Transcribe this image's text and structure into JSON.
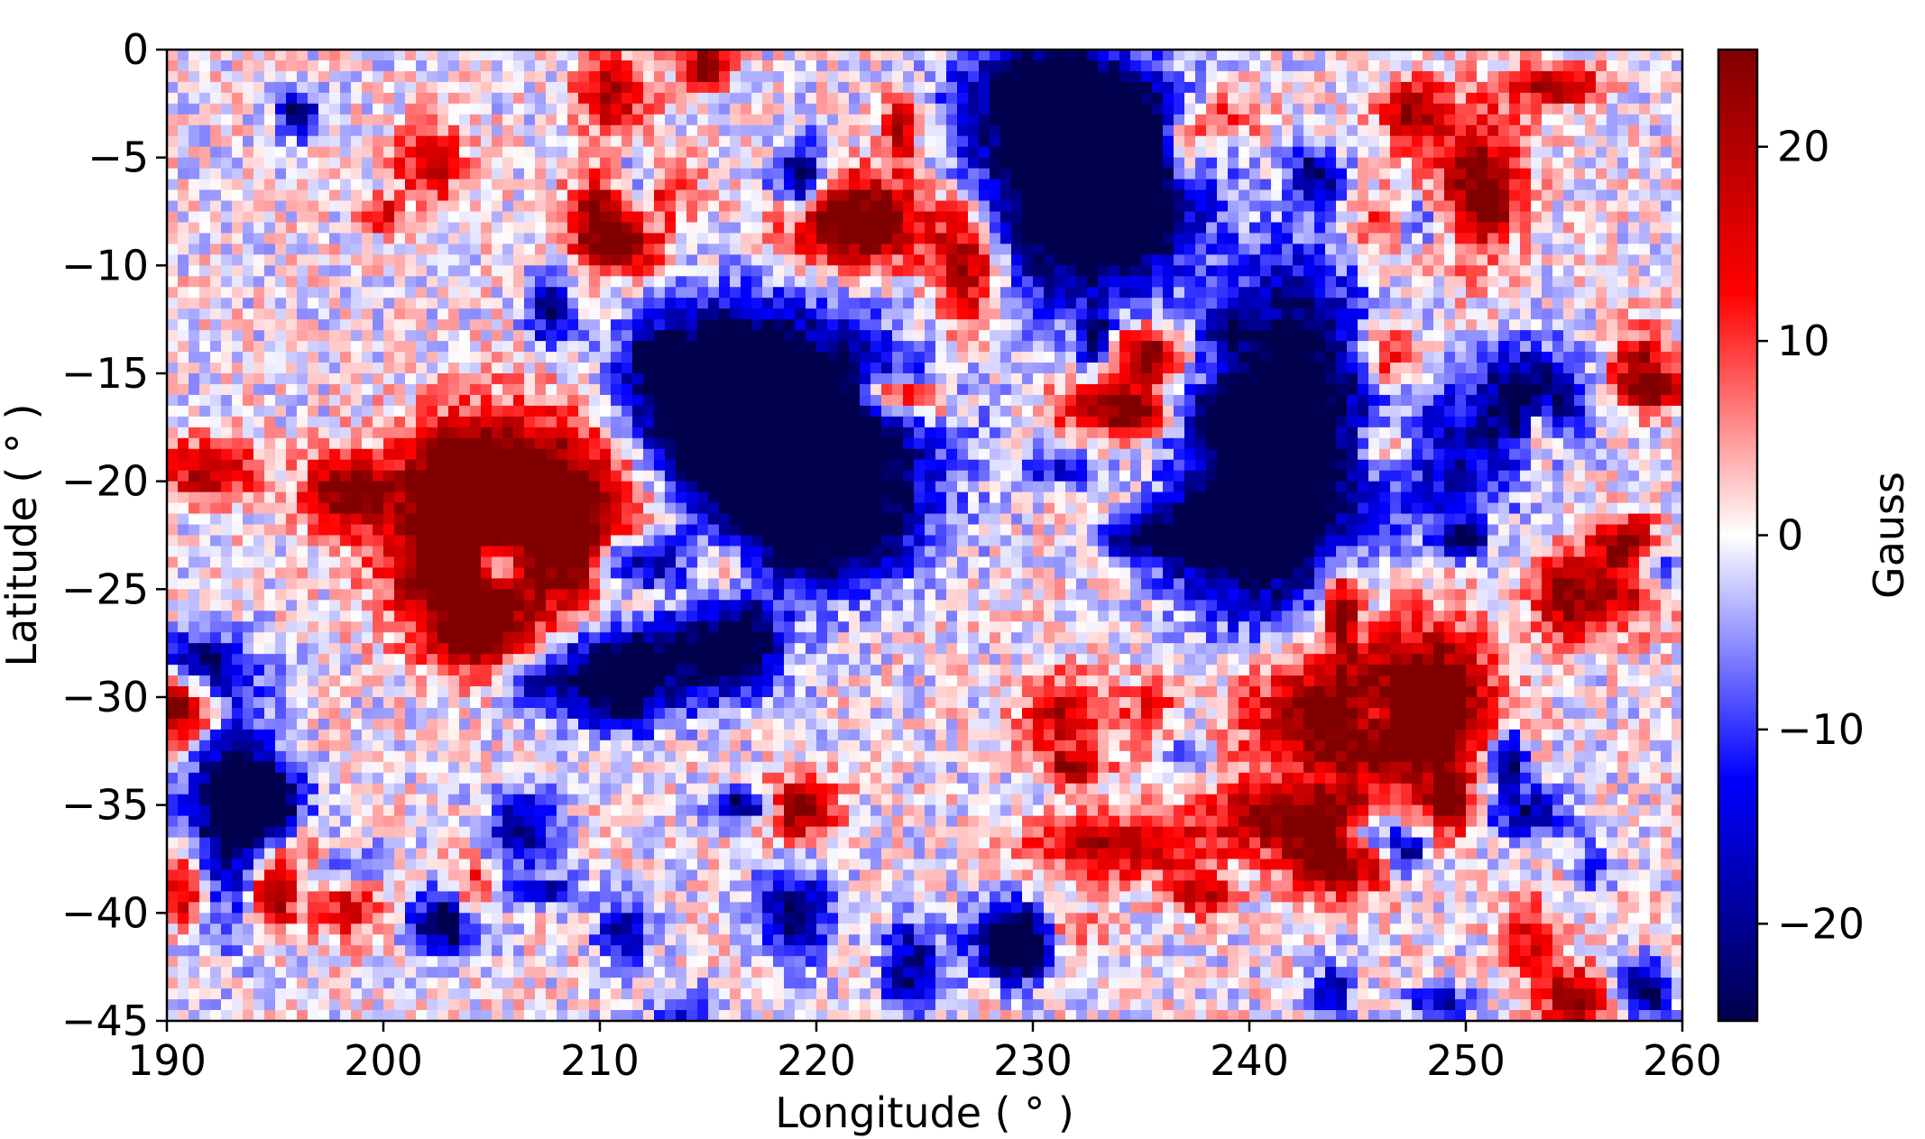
{
  "chart_data": {
    "type": "heatmap",
    "title": "",
    "xlabel": "Longitude ( ° )",
    "ylabel": "Latitude ( ° )",
    "colorbar_label": "Gauss",
    "colormap": "seismic",
    "colormap_stops": [
      "#00004c",
      "#0000ff",
      "#ffffff",
      "#ff0000",
      "#800000"
    ],
    "xlim": [
      190,
      260
    ],
    "ylim": [
      -45,
      0
    ],
    "clim": [
      -25,
      25
    ],
    "x_ticks": [
      190,
      200,
      210,
      220,
      230,
      240,
      250,
      260
    ],
    "y_ticks": [
      0,
      -5,
      -10,
      -15,
      -20,
      -25,
      -30,
      -35,
      -40,
      -45
    ],
    "colorbar_ticks": [
      20,
      10,
      0,
      -10,
      -20
    ],
    "x_tick_labels": [
      "190",
      "200",
      "210",
      "220",
      "230",
      "240",
      "250",
      "260"
    ],
    "y_tick_labels": [
      "0",
      "−5",
      "−10",
      "−15",
      "−20",
      "−25",
      "−30",
      "−35",
      "−40",
      "−45"
    ],
    "colorbar_tick_labels": [
      "20",
      "10",
      "0",
      "−10",
      "−20"
    ],
    "grid": false,
    "field_features": [
      {
        "lon": 218.5,
        "lat": -18.0,
        "sx": 4.2,
        "sy": 3.5,
        "value": -45
      },
      {
        "lon": 215.5,
        "lat": -16.0,
        "sx": 2.5,
        "sy": 2.5,
        "value": -30
      },
      {
        "lon": 220.5,
        "lat": -22.0,
        "sx": 2.5,
        "sy": 2.0,
        "value": -25
      },
      {
        "lon": 207.0,
        "lat": -21.5,
        "sx": 3.8,
        "sy": 3.0,
        "value": 42
      },
      {
        "lon": 203.5,
        "lat": -24.0,
        "sx": 2.0,
        "sy": 2.5,
        "value": 28
      },
      {
        "lon": 232.0,
        "lat": -7.0,
        "sx": 3.2,
        "sy": 3.2,
        "value": -38
      },
      {
        "lon": 230.5,
        "lat": -2.0,
        "sx": 2.5,
        "sy": 2.0,
        "value": -30
      },
      {
        "lon": 234.5,
        "lat": -5.5,
        "sx": 2.0,
        "sy": 2.5,
        "value": -28
      },
      {
        "lon": 222.0,
        "lat": -8.0,
        "sx": 2.2,
        "sy": 1.5,
        "value": 32
      },
      {
        "lon": 227.0,
        "lat": -10.0,
        "sx": 1.2,
        "sy": 2.2,
        "value": 26
      },
      {
        "lon": 242.0,
        "lat": -16.0,
        "sx": 2.5,
        "sy": 4.5,
        "value": -32
      },
      {
        "lon": 240.0,
        "lat": -22.0,
        "sx": 2.5,
        "sy": 3.0,
        "value": -30
      },
      {
        "lon": 248.0,
        "lat": -19.0,
        "sx": 3.0,
        "sy": 2.0,
        "value": -22
      },
      {
        "lon": 253.0,
        "lat": -16.0,
        "sx": 1.8,
        "sy": 1.5,
        "value": -28
      },
      {
        "lon": 244.5,
        "lat": -31.0,
        "sx": 3.0,
        "sy": 2.0,
        "value": 32
      },
      {
        "lon": 248.5,
        "lat": -30.0,
        "sx": 2.0,
        "sy": 2.5,
        "value": 26
      },
      {
        "lon": 242.0,
        "lat": -35.5,
        "sx": 3.0,
        "sy": 1.0,
        "value": 24
      },
      {
        "lon": 234.0,
        "lat": -37.0,
        "sx": 3.0,
        "sy": 1.0,
        "value": 20
      },
      {
        "lon": 244.0,
        "lat": -37.5,
        "sx": 1.8,
        "sy": 1.2,
        "value": 28
      },
      {
        "lon": 215.0,
        "lat": -28.0,
        "sx": 2.2,
        "sy": 1.5,
        "value": -30
      },
      {
        "lon": 211.0,
        "lat": -30.0,
        "sx": 1.5,
        "sy": 1.2,
        "value": -24
      },
      {
        "lon": 193.0,
        "lat": -35.0,
        "sx": 1.5,
        "sy": 3.5,
        "value": -26
      },
      {
        "lon": 191.5,
        "lat": -28.5,
        "sx": 1.5,
        "sy": 1.0,
        "value": -24
      },
      {
        "lon": 203.0,
        "lat": -40.5,
        "sx": 1.2,
        "sy": 1.0,
        "value": -30
      },
      {
        "lon": 192.0,
        "lat": -19.5,
        "sx": 1.5,
        "sy": 1.0,
        "value": 22
      },
      {
        "lon": 250.5,
        "lat": -6.0,
        "sx": 1.5,
        "sy": 2.5,
        "value": 22
      },
      {
        "lon": 257.5,
        "lat": -24.5,
        "sx": 1.2,
        "sy": 1.5,
        "value": 24
      },
      {
        "lon": 229.5,
        "lat": -41.5,
        "sx": 1.2,
        "sy": 1.0,
        "value": -26
      },
      {
        "lon": 219.0,
        "lat": -40.0,
        "sx": 1.2,
        "sy": 1.5,
        "value": -22
      },
      {
        "lon": 224.5,
        "lat": -42.5,
        "sx": 1.0,
        "sy": 1.5,
        "value": -22
      },
      {
        "lon": 233.0,
        "lat": -16.5,
        "sx": 1.5,
        "sy": 1.0,
        "value": 20
      },
      {
        "lon": 247.5,
        "lat": -3.0,
        "sx": 1.0,
        "sy": 1.0,
        "value": 24
      },
      {
        "lon": 255.0,
        "lat": -44.0,
        "sx": 1.0,
        "sy": 1.0,
        "value": 24
      }
    ]
  }
}
